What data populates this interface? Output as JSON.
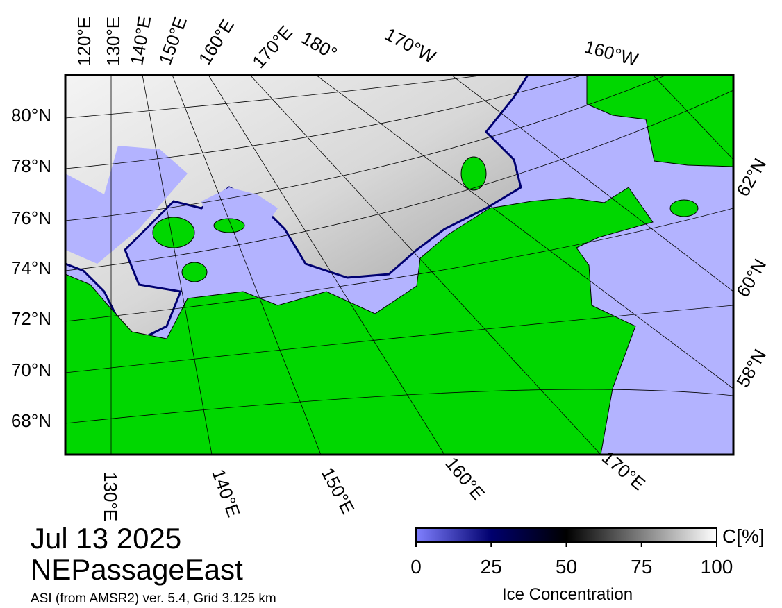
{
  "map": {
    "top_labels": [
      "120°E",
      "130°E",
      "140°E",
      "150°E",
      "160°E",
      "170°E",
      "180°",
      "170°W",
      "160°W"
    ],
    "left_labels": [
      "80°N",
      "78°N",
      "76°N",
      "74°N",
      "72°N",
      "70°N",
      "68°N"
    ],
    "right_labels": [
      "62°N",
      "60°N",
      "58°N"
    ],
    "bottom_labels": [
      "130°E",
      "140°E",
      "150°E",
      "160°E",
      "170°E"
    ]
  },
  "header": {
    "date": "Jul 13 2025",
    "region": "NEPassageEast",
    "caption": "ASI (from AMSR2) ver. 5.4,  Grid 3.125 km"
  },
  "colorbar": {
    "ticks": [
      0,
      25,
      50,
      75,
      100
    ],
    "unit": "C[%]",
    "label": "Ice Concentration"
  }
}
